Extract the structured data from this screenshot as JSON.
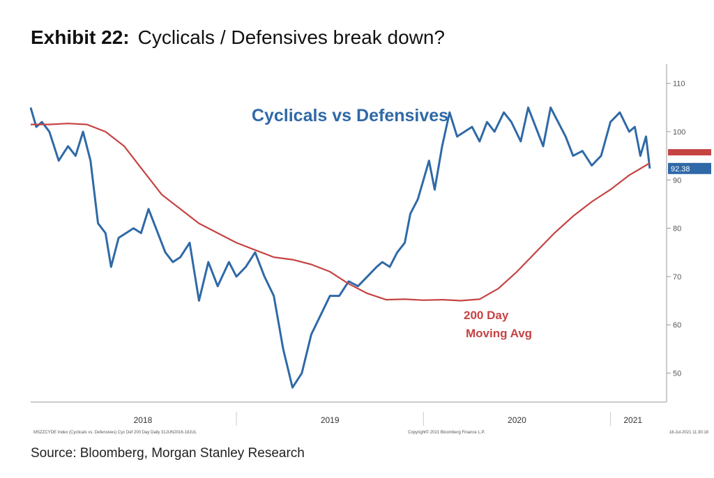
{
  "header": {
    "exhibit_label": "Exhibit 22:",
    "title": "Cyclicals / Defensives break down?"
  },
  "footer": {
    "source": "Source: Bloomberg, Morgan Stanley Research",
    "bloomberg_left": "MSZZCYDE Index (Cyclicals vs. Defensives) Cyc Def 200 Day   Daily 31JUN2016-18JUL",
    "bloomberg_center": "Copyright© 2021 Bloomberg Finance L.P.",
    "bloomberg_right": "18-Jul-2021 11:30:18"
  },
  "chart_data": {
    "type": "line",
    "title": "Cyclicals vs Defensives",
    "ylim": [
      44,
      114
    ],
    "yticks": [
      50,
      60,
      70,
      80,
      90,
      100,
      110
    ],
    "x_year_labels": [
      "2018",
      "2019",
      "2020",
      "2021"
    ],
    "last_value_label": "92.38",
    "series": [
      {
        "name": "Cyclicals vs Defensives",
        "color": "#2f69a7",
        "x": [
          2017.9,
          2017.93,
          2017.96,
          2018.0,
          2018.05,
          2018.1,
          2018.14,
          2018.18,
          2018.22,
          2018.26,
          2018.3,
          2018.33,
          2018.37,
          2018.41,
          2018.45,
          2018.49,
          2018.53,
          2018.57,
          2018.62,
          2018.66,
          2018.7,
          2018.75,
          2018.8,
          2018.85,
          2018.9,
          2018.96,
          2019.0,
          2019.05,
          2019.1,
          2019.15,
          2019.2,
          2019.25,
          2019.3,
          2019.35,
          2019.4,
          2019.45,
          2019.5,
          2019.55,
          2019.6,
          2019.65,
          2019.7,
          2019.75,
          2019.78,
          2019.82,
          2019.86,
          2019.9,
          2019.93,
          2019.97,
          2020.0,
          2020.03,
          2020.06,
          2020.1,
          2020.14,
          2020.18,
          2020.22,
          2020.26,
          2020.3,
          2020.34,
          2020.38,
          2020.43,
          2020.47,
          2020.52,
          2020.56,
          2020.6,
          2020.64,
          2020.68,
          2020.72,
          2020.76,
          2020.8,
          2020.85,
          2020.9,
          2020.95,
          2021.0,
          2021.05,
          2021.1,
          2021.13,
          2021.16,
          2021.19,
          2021.21
        ],
        "values": [
          105,
          101,
          102,
          100,
          94,
          97,
          95,
          100,
          94,
          81,
          79,
          72,
          78,
          79,
          80,
          79,
          84,
          80,
          75,
          73,
          74,
          77,
          65,
          73,
          68,
          73,
          70,
          72,
          75,
          70,
          66,
          55,
          47,
          50,
          58,
          62,
          66,
          66,
          69,
          68,
          70,
          72,
          73,
          72,
          75,
          77,
          83,
          86,
          90,
          94,
          88,
          97,
          104,
          99,
          100,
          101,
          98,
          102,
          100,
          104,
          102,
          98,
          105,
          101,
          97,
          105,
          102,
          99,
          95,
          96,
          93,
          95,
          102,
          104,
          100,
          101,
          95,
          99,
          92.38
        ]
      },
      {
        "name": "200 Day Moving Avg",
        "color": "#c64343",
        "x": [
          2017.9,
          2018.0,
          2018.1,
          2018.2,
          2018.3,
          2018.4,
          2018.5,
          2018.6,
          2018.7,
          2018.8,
          2018.9,
          2019.0,
          2019.1,
          2019.2,
          2019.3,
          2019.4,
          2019.5,
          2019.6,
          2019.7,
          2019.8,
          2019.9,
          2020.0,
          2020.1,
          2020.2,
          2020.3,
          2020.4,
          2020.5,
          2020.6,
          2020.7,
          2020.8,
          2020.9,
          2021.0,
          2021.1,
          2021.21
        ],
        "values": [
          101.5,
          101.5,
          101.7,
          101.5,
          100,
          97,
          92,
          87,
          84,
          81,
          79,
          77,
          75.5,
          74,
          73.5,
          72.5,
          71,
          68.5,
          66.5,
          65.2,
          65.3,
          65.1,
          65.2,
          65.0,
          65.3,
          67.5,
          71,
          75,
          79,
          82.5,
          85.5,
          88,
          91,
          93.5
        ]
      }
    ],
    "annotations": [
      {
        "text": "200 Day",
        "color": "#c64343"
      },
      {
        "text": "Moving Avg",
        "color": "#c64343"
      }
    ]
  }
}
